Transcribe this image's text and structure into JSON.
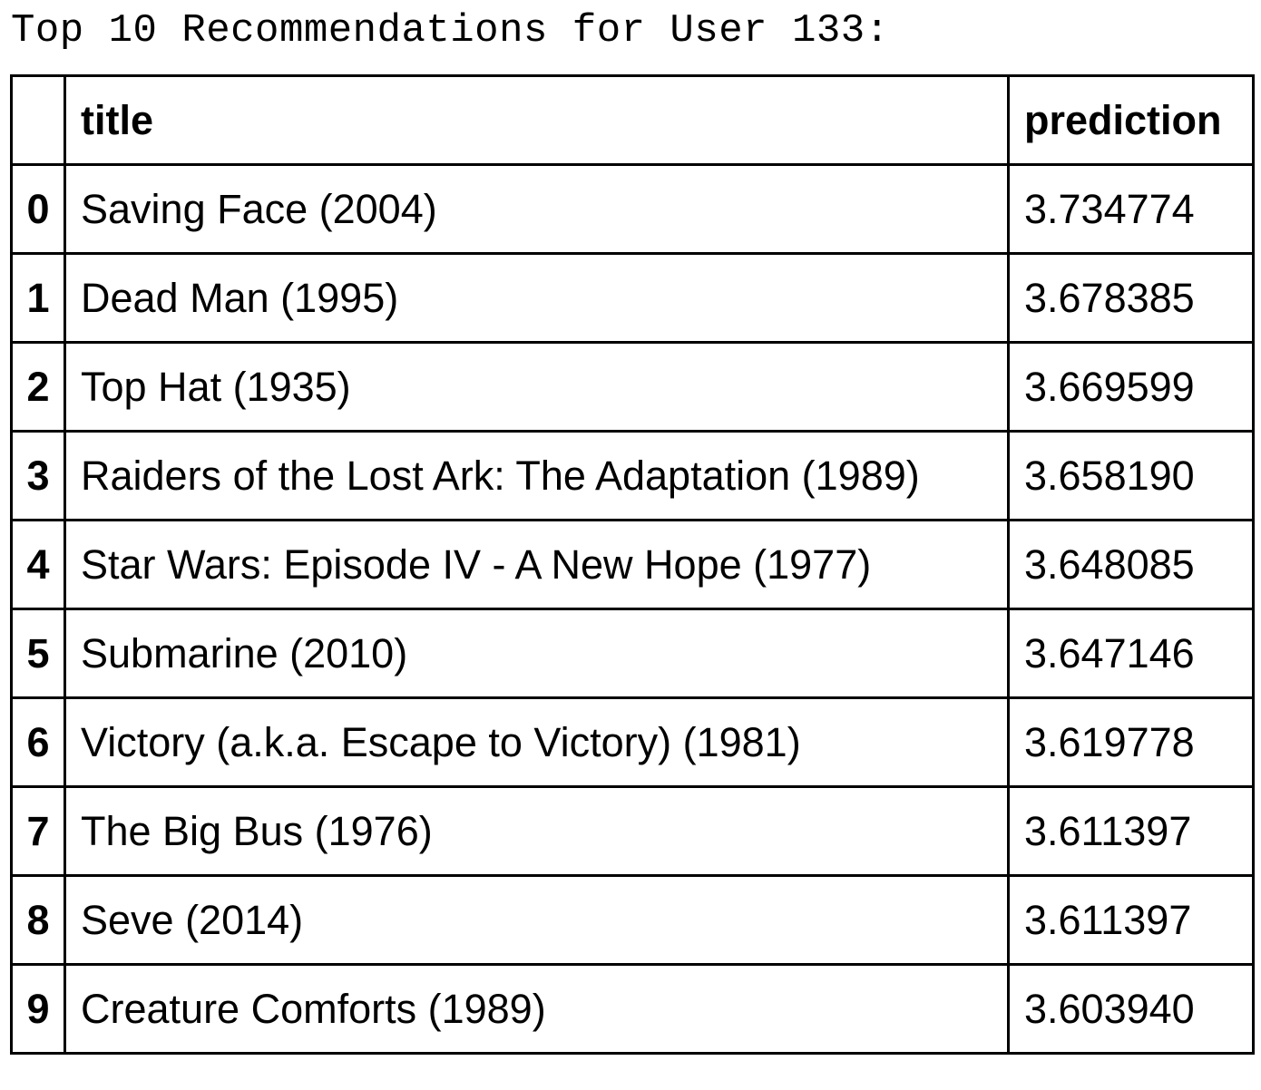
{
  "caption": "Top 10 Recommendations for User 133:",
  "table": {
    "columns": [
      "",
      "title",
      "prediction"
    ],
    "rows": [
      {
        "index": "0",
        "title": "Saving Face (2004)",
        "prediction": "3.734774"
      },
      {
        "index": "1",
        "title": "Dead Man (1995)",
        "prediction": "3.678385"
      },
      {
        "index": "2",
        "title": "Top Hat (1935)",
        "prediction": "3.669599"
      },
      {
        "index": "3",
        "title": "Raiders of the Lost Ark: The Adaptation (1989)",
        "prediction": "3.658190"
      },
      {
        "index": "4",
        "title": "Star Wars: Episode IV - A New Hope (1977)",
        "prediction": "3.648085"
      },
      {
        "index": "5",
        "title": "Submarine (2010)",
        "prediction": "3.647146"
      },
      {
        "index": "6",
        "title": "Victory (a.k.a. Escape to Victory) (1981)",
        "prediction": "3.619778"
      },
      {
        "index": "7",
        "title": "The Big Bus (1976)",
        "prediction": "3.611397"
      },
      {
        "index": "8",
        "title": "Seve (2014)",
        "prediction": "3.611397"
      },
      {
        "index": "9",
        "title": "Creature Comforts (1989)",
        "prediction": "3.603940"
      }
    ]
  }
}
